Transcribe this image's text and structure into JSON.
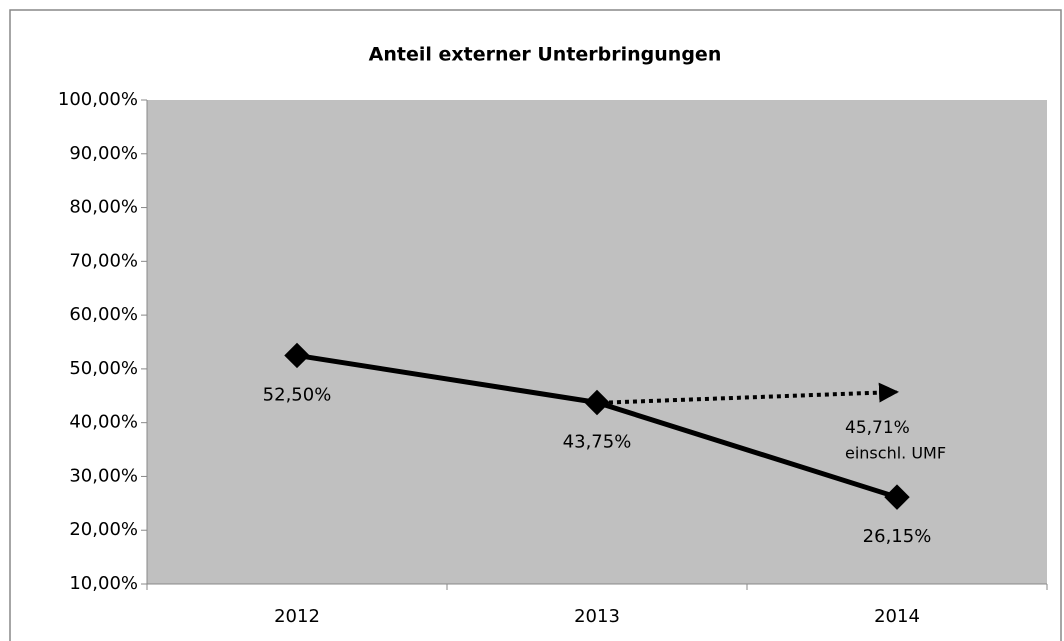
{
  "chart_data": {
    "type": "line",
    "title": "Anteil externer Unterbringungen",
    "categories": [
      "2012",
      "2013",
      "2014"
    ],
    "values": [
      52.5,
      43.75,
      26.15
    ],
    "value_labels": [
      "52,50%",
      "43,75%",
      "26,15%"
    ],
    "color": "#000000",
    "ylim": [
      10,
      100
    ],
    "yticks": [
      {
        "value": 10,
        "label": "10,00%"
      },
      {
        "value": 20,
        "label": "20,00%"
      },
      {
        "value": 30,
        "label": "30,00%"
      },
      {
        "value": 40,
        "label": "40,00%"
      },
      {
        "value": 50,
        "label": "50,00%"
      },
      {
        "value": 60,
        "label": "60,00%"
      },
      {
        "value": 70,
        "label": "70,00%"
      },
      {
        "value": 80,
        "label": "80,00%"
      },
      {
        "value": 90,
        "label": "90,00%"
      },
      {
        "value": 100,
        "label": "100,00%"
      }
    ],
    "grid": false,
    "annotations": [
      {
        "value": 45.71,
        "label": "45,71%",
        "text": "einschl. UMF"
      }
    ]
  }
}
